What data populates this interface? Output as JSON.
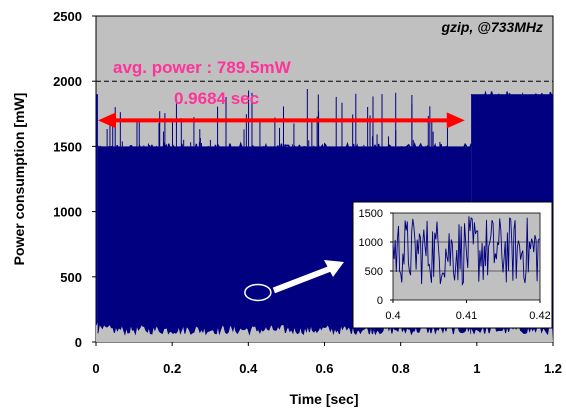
{
  "chart_data": {
    "type": "line",
    "title": "gzip, @733MHz",
    "xlabel": "Time [sec]",
    "ylabel": "Power consumption [mW]",
    "xlim": [
      0,
      1.2
    ],
    "ylim": [
      0,
      2500
    ],
    "xticks": [
      "0",
      "0.2",
      "0.4",
      "0.6",
      "0.8",
      "1",
      "1.2"
    ],
    "yticks": [
      "0",
      "500",
      "1000",
      "1500",
      "2000",
      "2500"
    ],
    "grid": "horizontal dashed at 2000",
    "plot_background": "#c0c0c0",
    "series_color": "#000080",
    "annotations": {
      "avg_power": "avg. power : 789.5mW",
      "duration": "0.9684 sec",
      "duration_range": [
        0,
        0.9684
      ],
      "duration_y": 1700,
      "annotation_color": "#ff0000",
      "label_color": "#ff3399"
    },
    "series": [
      {
        "segments": [
          {
            "x": [
              0,
              0.005
            ],
            "low": 80,
            "high": 1900
          },
          {
            "x": [
              0.005,
              0.985
            ],
            "low": 60,
            "high": 1500,
            "spikes_high": 1950
          },
          {
            "x": [
              0.985,
              1.2
            ],
            "low": 60,
            "high": 1900
          }
        ]
      }
    ],
    "inset": {
      "xlim": [
        0.4,
        0.42
      ],
      "ylim": [
        0,
        1500
      ],
      "xticks": [
        "0.4",
        "0.41",
        "0.42"
      ],
      "yticks": [
        "0",
        "500",
        "1000",
        "1500"
      ],
      "pointer_from": [
        0.425,
        380
      ],
      "oscillation_low": 250,
      "oscillation_high": 1450
    }
  }
}
